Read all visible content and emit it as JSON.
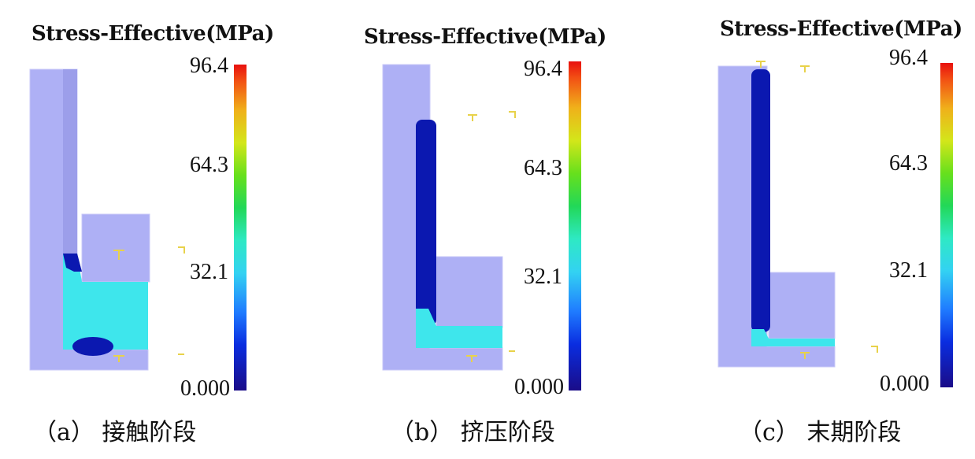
{
  "panels": [
    {
      "title": "Stress-Effective(MPa)",
      "max_label": "96.4",
      "mid2_label": "64.3",
      "mid1_label": "32.1",
      "min_label": "0.000",
      "caption": "（a） 接触阶段"
    },
    {
      "title": "Stress-Effective(MPa)",
      "max_label": "96.4",
      "mid2_label": "64.3",
      "mid1_label": "32.1",
      "min_label": "0.000",
      "caption": "（b） 挤压阶段"
    },
    {
      "title": "Stress-Effective(MPa)",
      "max_label": "96.4",
      "mid2_label": "64.3",
      "mid1_label": "32.1",
      "min_label": "0.000",
      "caption": "（c） 末期阶段"
    }
  ],
  "colors": {
    "part": "#aeb0f5",
    "part_dark": "#9c9eea",
    "low_stress": "#0b18b0",
    "mid_stress": "#3ee6ec",
    "outline_marks": "#e8d24a"
  }
}
